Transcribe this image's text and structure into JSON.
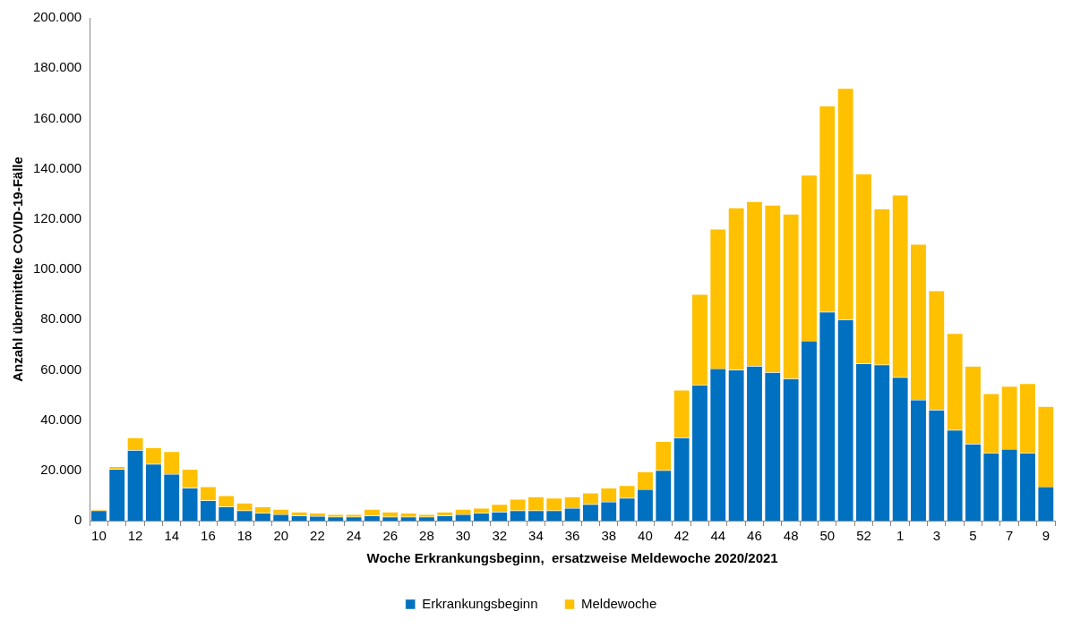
{
  "chart_data": {
    "type": "bar",
    "stacked": true,
    "xlabel": "Woche Erkrankungsbeginn,  ersatzweise Meldewoche 2020/2021",
    "ylabel": "Anzahl übermittelte COVID-19-Fälle",
    "categories": [
      "10",
      null,
      "12",
      null,
      "14",
      null,
      "16",
      null,
      "18",
      null,
      "20",
      null,
      "22",
      null,
      "24",
      null,
      "26",
      null,
      "28",
      null,
      "30",
      null,
      "32",
      null,
      "34",
      null,
      "36",
      null,
      "38",
      null,
      "40",
      null,
      "42",
      null,
      "44",
      null,
      "46",
      null,
      "48",
      null,
      "50",
      null,
      "52",
      null,
      "1",
      null,
      "3",
      null,
      "5",
      null,
      "7",
      null,
      "9"
    ],
    "series": [
      {
        "name": "Erkrankungsbeginn",
        "color": "#0070c0",
        "values": [
          4000,
          20500,
          28000,
          22500,
          18500,
          13000,
          8000,
          5500,
          4000,
          3000,
          2500,
          2000,
          1800,
          1500,
          1500,
          2000,
          1500,
          1500,
          1500,
          2000,
          2500,
          3000,
          3500,
          4000,
          4000,
          4000,
          5000,
          6500,
          7500,
          9000,
          12500,
          20000,
          33000,
          54000,
          60500,
          60000,
          61500,
          59000,
          56500,
          71500,
          83000,
          80000,
          62500,
          62000,
          57000,
          48000,
          44000,
          36000,
          30500,
          27000,
          28500,
          27000,
          13500
        ]
      },
      {
        "name": "Meldewoche",
        "color": "#ffc000",
        "values": [
          500,
          1000,
          5000,
          6500,
          9000,
          7500,
          5500,
          4500,
          3000,
          2500,
          2000,
          1500,
          1200,
          1000,
          1000,
          2500,
          2000,
          1500,
          1000,
          1500,
          2000,
          2000,
          3000,
          4500,
          5500,
          5000,
          4500,
          4500,
          5500,
          5000,
          7000,
          11500,
          19000,
          36000,
          55500,
          64500,
          65500,
          66500,
          65500,
          66000,
          82000,
          92000,
          75500,
          62000,
          72500,
          62000,
          47500,
          38500,
          31000,
          23500,
          25000,
          27500,
          32000
        ]
      }
    ],
    "ylim": [
      0,
      200000
    ],
    "yticks": [
      {
        "value": 0,
        "label": "0"
      },
      {
        "value": 20000,
        "label": "20.000"
      },
      {
        "value": 40000,
        "label": "40.000"
      },
      {
        "value": 60000,
        "label": "60.000"
      },
      {
        "value": 80000,
        "label": "80.000"
      },
      {
        "value": 100000,
        "label": "100.000"
      },
      {
        "value": 120000,
        "label": "120.000"
      },
      {
        "value": 140000,
        "label": "140.000"
      },
      {
        "value": 160000,
        "label": "160.000"
      },
      {
        "value": 180000,
        "label": "180.000"
      },
      {
        "value": 200000,
        "label": "200.000"
      }
    ],
    "grid": false,
    "legend": "bottom"
  }
}
